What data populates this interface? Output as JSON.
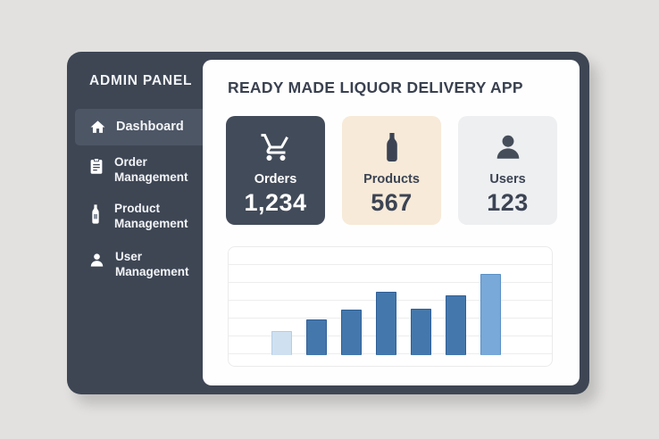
{
  "app": {
    "background_color": "#e2e1df",
    "window_color": "#3e4654",
    "active_item_color": "#4d5665",
    "text_light": "#f2f4f7",
    "text_dark": "#3a4150"
  },
  "sidebar": {
    "title": "ADMIN PANEL",
    "items": [
      {
        "label": "Dashboard",
        "icon": "home-icon",
        "active": true
      },
      {
        "label": "Order Management",
        "icon": "order-icon",
        "active": false
      },
      {
        "label": "Product Management",
        "icon": "bottle-icon",
        "active": false
      },
      {
        "label": "User Management",
        "icon": "user-icon",
        "active": false
      }
    ]
  },
  "main": {
    "title": "READY MADE LIQUOR DELIVERY APP",
    "stats": [
      {
        "label": "Orders",
        "value": "1,234",
        "icon": "cart-icon",
        "bg": "#424b59",
        "text": "#ffffff"
      },
      {
        "label": "Products",
        "value": "567",
        "icon": "bottle-icon",
        "bg": "#f7ead8",
        "text": "#3c4454"
      },
      {
        "label": "Users",
        "value": "123",
        "icon": "person-icon",
        "bg": "#edeff1",
        "text": "#3c4454"
      }
    ],
    "chart_data": {
      "type": "bar",
      "categories": [
        "",
        "",
        "",
        "",
        "",
        "",
        ""
      ],
      "values": [
        27,
        40,
        51,
        71,
        52,
        67,
        91
      ],
      "value_unit": "relative-height-px (no axis labels shown)",
      "title": "",
      "xlabel": "",
      "ylabel": "",
      "gridlines": true,
      "legend": false,
      "bar_colors": [
        "#cfe0f1",
        "#4478ac",
        "#4478ac",
        "#4478ac",
        "#4478ac",
        "#4478ac",
        "#79a9d9"
      ],
      "bar_borders": [
        "#b5cde8",
        "#2f5f98",
        "#2f5f98",
        "#2f5f98",
        "#2f5f98",
        "#2f5f98",
        "#5a90c8"
      ]
    }
  }
}
